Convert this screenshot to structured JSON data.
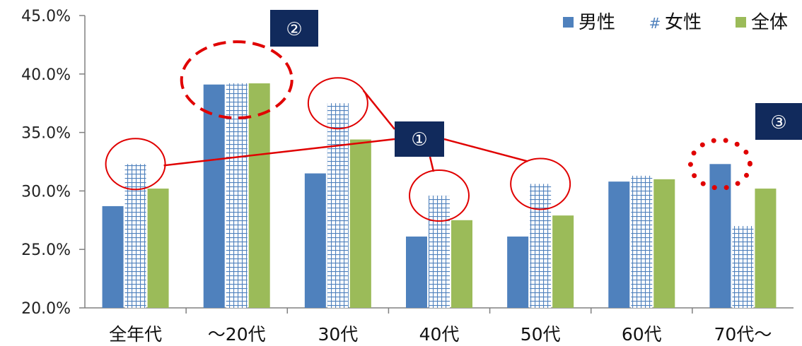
{
  "chart_data": {
    "type": "bar",
    "categories": [
      "全年代",
      "～20代",
      "30代",
      "40代",
      "50代",
      "60代",
      "70代～"
    ],
    "series": [
      {
        "name": "男性",
        "values": [
          28.7,
          39.1,
          31.5,
          26.1,
          26.1,
          30.8,
          32.3
        ],
        "color": "#4f81bd",
        "pattern": "solid"
      },
      {
        "name": "女性",
        "values": [
          32.3,
          39.2,
          37.5,
          29.6,
          30.6,
          31.3,
          27.0
        ],
        "color": "#4f81bd",
        "pattern": "grid"
      },
      {
        "name": "全体",
        "values": [
          30.2,
          39.2,
          34.4,
          27.5,
          27.9,
          31.0,
          30.2
        ],
        "color": "#9bbb59",
        "pattern": "solid"
      }
    ],
    "yticks": [
      "20.0%",
      "25.0%",
      "30.0%",
      "35.0%",
      "40.0%",
      "45.0%"
    ],
    "ylim": [
      20,
      45
    ],
    "grid": false,
    "legend": "top-right",
    "annotations": [
      {
        "label": "①",
        "style": "solid-ellipse",
        "color": "#e00000",
        "targets": [
          [
            0,
            1
          ],
          [
            2,
            1
          ],
          [
            3,
            1
          ],
          [
            4,
            1
          ]
        ]
      },
      {
        "label": "②",
        "style": "dashed-ellipse",
        "color": "#e00000",
        "targets": [
          [
            1,
            0
          ],
          [
            1,
            1
          ],
          [
            1,
            2
          ]
        ]
      },
      {
        "label": "③",
        "style": "dotted-ellipse",
        "color": "#e00000",
        "targets": [
          [
            6,
            0
          ]
        ]
      }
    ]
  }
}
